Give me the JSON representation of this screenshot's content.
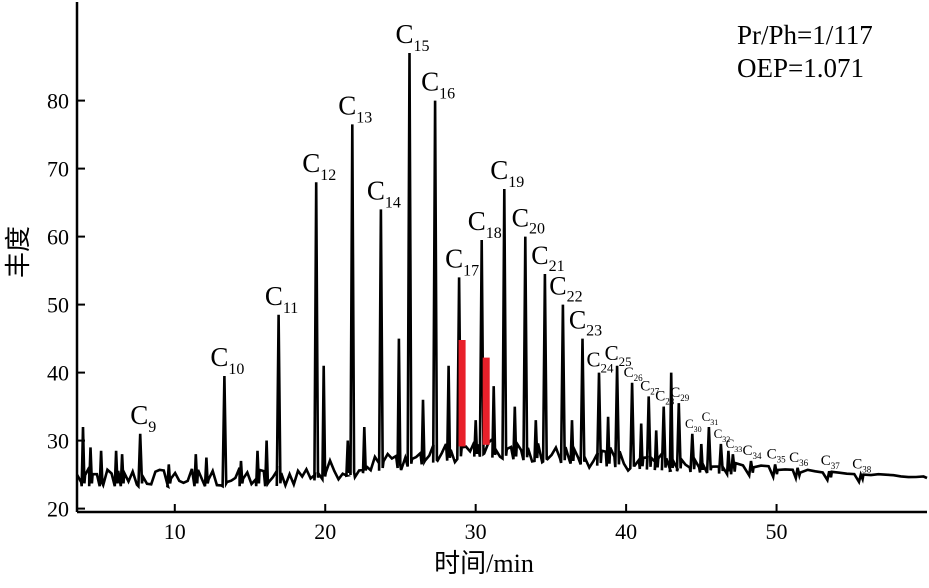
{
  "chart_data": {
    "type": "line",
    "title": "",
    "xlabel": "时间/min",
    "ylabel": "丰度",
    "xlim": [
      3.5,
      60
    ],
    "ylim": [
      19.5,
      94.5
    ],
    "xticks": [
      10,
      20,
      30,
      40,
      50
    ],
    "yticks": [
      20,
      30,
      40,
      50,
      60,
      70,
      80
    ],
    "grid": false,
    "line_color": "#000000",
    "highlight_color": "#e8202a",
    "annotations": [
      "Pr/Ph=1/117",
      "OEP=1.071"
    ],
    "peaks": [
      {
        "sub": "9",
        "rt": 7.7,
        "value": 31
      },
      {
        "sub": "10",
        "rt": 13.3,
        "value": 39.5
      },
      {
        "sub": "11",
        "rt": 16.9,
        "value": 48.5
      },
      {
        "sub": "12",
        "rt": 19.4,
        "value": 68
      },
      {
        "sub": "13",
        "rt": 21.8,
        "value": 76.5
      },
      {
        "sub": "14",
        "rt": 23.7,
        "value": 64
      },
      {
        "sub": "15",
        "rt": 25.6,
        "value": 87
      },
      {
        "sub": "16",
        "rt": 27.3,
        "value": 80
      },
      {
        "sub": "17",
        "rt": 28.9,
        "value": 54
      },
      {
        "sub": "18",
        "rt": 30.4,
        "value": 59.5
      },
      {
        "sub": "19",
        "rt": 31.9,
        "value": 67
      },
      {
        "sub": "20",
        "rt": 33.3,
        "value": 60
      },
      {
        "sub": "21",
        "rt": 34.6,
        "value": 54.5
      },
      {
        "sub": "22",
        "rt": 35.8,
        "value": 50
      },
      {
        "sub": "23",
        "rt": 37.1,
        "value": 45
      },
      {
        "sub": "24",
        "rt": 38.2,
        "value": 40
      },
      {
        "sub": "25",
        "rt": 39.4,
        "value": 41
      },
      {
        "sub": "26",
        "rt": 40.4,
        "value": 38.5
      },
      {
        "sub": "27",
        "rt": 41.5,
        "value": 36.5
      },
      {
        "sub": "28",
        "rt": 42.5,
        "value": 35
      },
      {
        "sub": "29",
        "rt": 43.5,
        "value": 35.5
      },
      {
        "sub": "30",
        "rt": 44.4,
        "value": 31
      },
      {
        "sub": "31",
        "rt": 45.5,
        "value": 32
      },
      {
        "sub": "32",
        "rt": 46.3,
        "value": 29.5
      },
      {
        "sub": "33",
        "rt": 47.1,
        "value": 28
      },
      {
        "sub": "34",
        "rt": 48.3,
        "value": 27
      },
      {
        "sub": "35",
        "rt": 49.9,
        "value": 26.5
      },
      {
        "sub": "36",
        "rt": 51.4,
        "value": 26
      },
      {
        "sub": "37",
        "rt": 53.5,
        "value": 25.5
      },
      {
        "sub": "38",
        "rt": 55.6,
        "value": 25
      }
    ],
    "highlight_bars": [
      {
        "rt": 29.1,
        "value": 44.8
      },
      {
        "rt": 30.7,
        "value": 42.2
      }
    ],
    "minor_peaks": [
      {
        "rt": 3.9,
        "value": 32
      },
      {
        "rt": 4.4,
        "value": 29
      },
      {
        "rt": 5.1,
        "value": 28.5
      },
      {
        "rt": 6.1,
        "value": 28.5
      },
      {
        "rt": 6.5,
        "value": 28
      },
      {
        "rt": 9.6,
        "value": 26.5
      },
      {
        "rt": 11.4,
        "value": 28
      },
      {
        "rt": 12.1,
        "value": 27.5
      },
      {
        "rt": 14.4,
        "value": 27
      },
      {
        "rt": 15.5,
        "value": 28.5
      },
      {
        "rt": 16.1,
        "value": 30
      },
      {
        "rt": 19.9,
        "value": 41
      },
      {
        "rt": 21.5,
        "value": 30
      },
      {
        "rt": 22.6,
        "value": 32
      },
      {
        "rt": 24.9,
        "value": 45
      },
      {
        "rt": 26.5,
        "value": 36
      },
      {
        "rt": 28.2,
        "value": 41
      },
      {
        "rt": 30.0,
        "value": 33
      },
      {
        "rt": 31.2,
        "value": 38
      },
      {
        "rt": 32.6,
        "value": 35
      },
      {
        "rt": 34.0,
        "value": 33
      },
      {
        "rt": 36.4,
        "value": 33
      },
      {
        "rt": 38.8,
        "value": 33.5
      },
      {
        "rt": 41.0,
        "value": 32.5
      },
      {
        "rt": 42.0,
        "value": 31.5
      },
      {
        "rt": 43.0,
        "value": 40
      },
      {
        "rt": 45.0,
        "value": 29.5
      },
      {
        "rt": 46.8,
        "value": 28.5
      }
    ]
  }
}
